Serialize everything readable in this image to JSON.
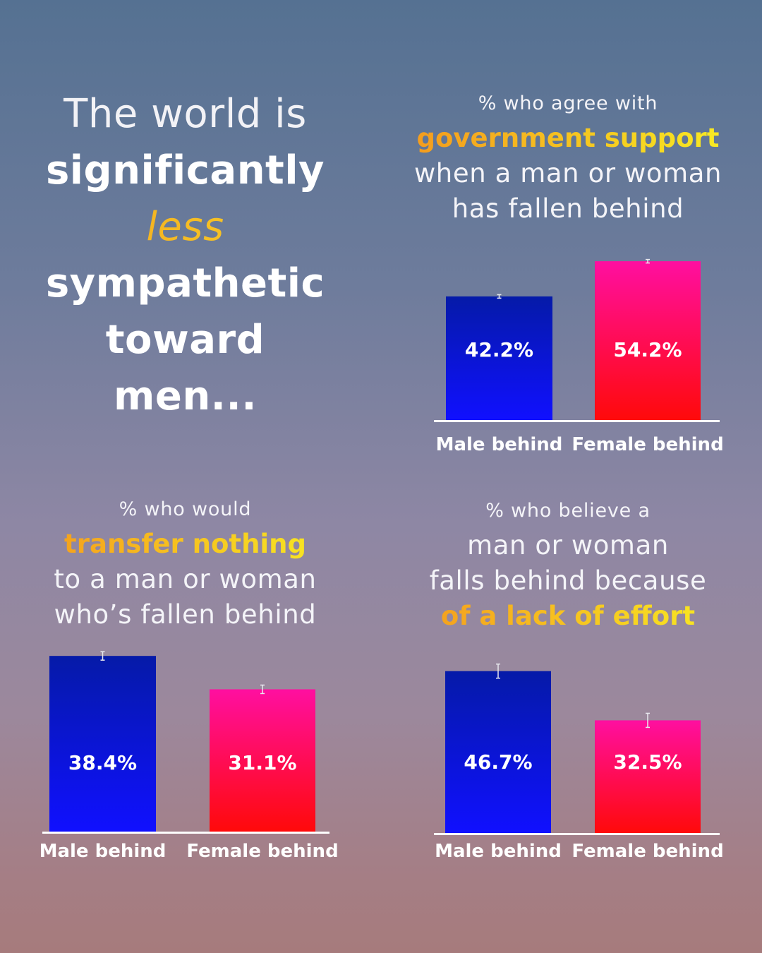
{
  "headline": {
    "line1": "The world is",
    "line2": "significantly",
    "line3": "less",
    "line4": "sympathetic",
    "line5": "toward men..."
  },
  "colors": {
    "male_bar_top": "#051aa8",
    "male_bar_bottom": "#1010ff",
    "female_bar_top": "#ff0fa0",
    "female_bar_bottom": "#ff0a0a",
    "highlight_start": "#f49a1e",
    "highlight_end": "#f8ec22"
  },
  "chart_data": [
    {
      "type": "bar",
      "title_pre": "% who agree with",
      "title_highlight": "government support",
      "title_post": [
        "when a man or woman",
        "has fallen behind"
      ],
      "categories": [
        "Male behind",
        "Female behind"
      ],
      "values": [
        42.2,
        54.2
      ],
      "labels": [
        "42.2%",
        "54.2%"
      ],
      "unit": "%",
      "error_bars": true
    },
    {
      "type": "bar",
      "title_pre": "% who would",
      "title_highlight": "transfer nothing",
      "title_post": [
        "to a man or woman",
        "who’s fallen behind"
      ],
      "categories": [
        "Male behind",
        "Female behind"
      ],
      "values": [
        38.4,
        31.1
      ],
      "labels": [
        "38.4%",
        "31.1%"
      ],
      "unit": "%",
      "error_bars": true
    },
    {
      "type": "bar",
      "title_pre": "% who believe a",
      "title_mid": [
        "man or woman",
        "falls behind because"
      ],
      "title_highlight": "of a lack of effort",
      "categories": [
        "Male behind",
        "Female behind"
      ],
      "values": [
        46.7,
        32.5
      ],
      "labels": [
        "46.7%",
        "32.5%"
      ],
      "unit": "%",
      "error_bars": true
    }
  ]
}
